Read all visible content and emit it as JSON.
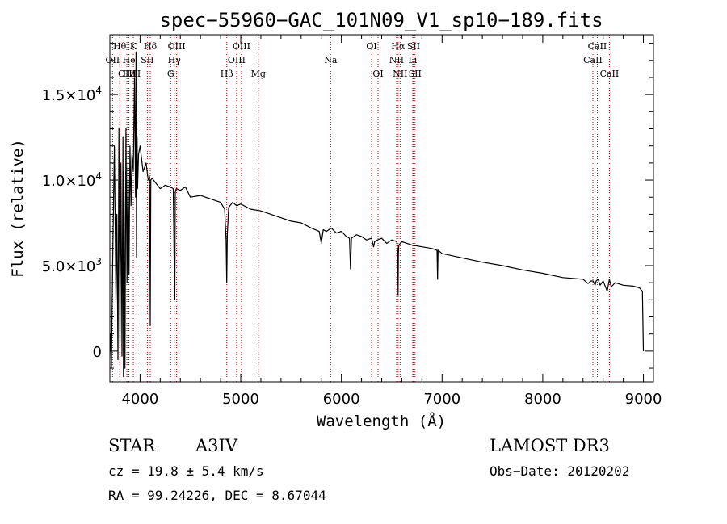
{
  "chart_data": {
    "type": "line",
    "title": "spec−55960−GAC_101N09_V1_sp10−189.fits",
    "xlabel": "Wavelength (Å)",
    "ylabel": "Flux (relative)",
    "xlim": [
      3700,
      9100
    ],
    "ylim": [
      -1800,
      18500
    ],
    "xticks": [
      {
        "value": 4000,
        "label": "4000"
      },
      {
        "value": 5000,
        "label": "5000"
      },
      {
        "value": 6000,
        "label": "6000"
      },
      {
        "value": 7000,
        "label": "7000"
      },
      {
        "value": 8000,
        "label": "8000"
      },
      {
        "value": 9000,
        "label": "9000"
      }
    ],
    "yticks": [
      {
        "value": 0,
        "label": "0"
      },
      {
        "value": 5000,
        "label": "5.0×10",
        "sup": "3"
      },
      {
        "value": 10000,
        "label": "1.0×10",
        "sup": "4"
      },
      {
        "value": 15000,
        "label": "1.5×10",
        "sup": "4"
      }
    ],
    "spectrum": {
      "name": "flux",
      "x": [
        3705,
        3715,
        3730,
        3745,
        3760,
        3770,
        3780,
        3790,
        3800,
        3810,
        3820,
        3830,
        3835,
        3840,
        3850,
        3860,
        3870,
        3880,
        3890,
        3900,
        3910,
        3920,
        3933,
        3945,
        3955,
        3960,
        3965,
        3970,
        3975,
        3985,
        4000,
        4030,
        4060,
        4080,
        4095,
        4101,
        4107,
        4120,
        4160,
        4200,
        4250,
        4300,
        4330,
        4340,
        4345,
        4350,
        4360,
        4400,
        4450,
        4500,
        4600,
        4700,
        4800,
        4840,
        4855,
        4861,
        4867,
        4880,
        4920,
        4960,
        5000,
        5100,
        5200,
        5300,
        5400,
        5500,
        5600,
        5700,
        5780,
        5800,
        5820,
        5850,
        5900,
        5950,
        6000,
        6050,
        6080,
        6090,
        6100,
        6150,
        6200,
        6250,
        6300,
        6320,
        6330,
        6360,
        6400,
        6450,
        6500,
        6550,
        6560,
        6563,
        6566,
        6570,
        6600,
        6650,
        6700,
        6800,
        6900,
        6950,
        6955,
        6960,
        7000,
        7200,
        7400,
        7600,
        7800,
        8000,
        8200,
        8400,
        8450,
        8480,
        8500,
        8520,
        8530,
        8550,
        8570,
        8600,
        8640,
        8662,
        8680,
        8720,
        8800,
        8900,
        8960,
        8990,
        9000
      ],
      "y": [
        1000,
        -1000,
        6000,
        12000,
        3000,
        8000,
        -500,
        13000,
        500,
        11000,
        -300,
        12500,
        -1500,
        10500,
        -1000,
        13000,
        4000,
        11000,
        4500,
        12000,
        8500,
        11500,
        10500,
        16000,
        9000,
        17500,
        5500,
        12500,
        9500,
        11500,
        12000,
        10500,
        11000,
        10000,
        10200,
        1500,
        10000,
        10100,
        9800,
        9500,
        9700,
        9600,
        9500,
        4500,
        3000,
        9300,
        9500,
        9400,
        9600,
        9000,
        9100,
        8900,
        8700,
        8300,
        6500,
        4000,
        6800,
        8400,
        8700,
        8500,
        8600,
        8300,
        8200,
        8000,
        7800,
        7600,
        7500,
        7200,
        7000,
        6300,
        7100,
        7000,
        7200,
        6900,
        7000,
        6700,
        6600,
        4800,
        6600,
        6800,
        6700,
        6500,
        6600,
        6100,
        6400,
        6500,
        6600,
        6300,
        6500,
        6400,
        5800,
        3300,
        5700,
        6200,
        6400,
        6300,
        6200,
        6100,
        6000,
        5900,
        4200,
        5900,
        5700,
        5450,
        5200,
        5000,
        4750,
        4550,
        4300,
        4200,
        3950,
        4100,
        4100,
        3850,
        4100,
        4200,
        3850,
        4100,
        3500,
        4200,
        3750,
        4000,
        3850,
        3800,
        3700,
        3500,
        0
      ]
    },
    "spectral_lines": [
      {
        "label": "Hθ",
        "wavelength": 3798,
        "row": 1
      },
      {
        "label": "OII",
        "wavelength": 3727,
        "row": 2
      },
      {
        "label": "OIII",
        "wavelength": 3869,
        "row": 3
      },
      {
        "label": "Hε",
        "wavelength": 3889,
        "row": 3
      },
      {
        "label": "He",
        "wavelength": 3889,
        "row": 2
      },
      {
        "label": "K",
        "wavelength": 3933,
        "row": 1
      },
      {
        "label": "H",
        "wavelength": 3968,
        "row": 3
      },
      {
        "label": "Hδ",
        "wavelength": 4101,
        "row": 1
      },
      {
        "label": "SII",
        "wavelength": 4072,
        "row": 2
      },
      {
        "label": "OIII",
        "wavelength": 4363,
        "row": 1
      },
      {
        "label": "Hγ",
        "wavelength": 4340,
        "row": 2
      },
      {
        "label": "G",
        "wavelength": 4304,
        "row": 3
      },
      {
        "label": "Hβ",
        "wavelength": 4861,
        "row": 3
      },
      {
        "label": "OIII",
        "wavelength": 4959,
        "row": 2
      },
      {
        "label": "OIII",
        "wavelength": 5007,
        "row": 1
      },
      {
        "label": "Mg",
        "wavelength": 5175,
        "row": 3
      },
      {
        "label": "Na",
        "wavelength": 5893,
        "row": 2
      },
      {
        "label": "OI",
        "wavelength": 6300,
        "row": 1
      },
      {
        "label": "OI",
        "wavelength": 6364,
        "row": 3
      },
      {
        "label": "Hα",
        "wavelength": 6563,
        "row": 1
      },
      {
        "label": "NII",
        "wavelength": 6548,
        "row": 2
      },
      {
        "label": "NII",
        "wavelength": 6583,
        "row": 3
      },
      {
        "label": "SII",
        "wavelength": 6717,
        "row": 1
      },
      {
        "label": "Li",
        "wavelength": 6708,
        "row": 2
      },
      {
        "label": "SII",
        "wavelength": 6731,
        "row": 3
      },
      {
        "label": "CaII",
        "wavelength": 8498,
        "row": 2
      },
      {
        "label": "CaII",
        "wavelength": 8542,
        "row": 1
      },
      {
        "label": "CaII",
        "wavelength": 8662,
        "row": 3
      }
    ]
  },
  "info": {
    "object_class": "STAR",
    "subclass": "A3IV",
    "survey": "LAMOST DR3",
    "redshift": "cz = 19.8 ± 5.4 km/s",
    "obs_date": "Obs−Date: 20120202",
    "coords": "RA =  99.24226, DEC =   8.67044"
  },
  "colors": {
    "line_marker": "#c00000",
    "spectrum": "#000000",
    "axis": "#000000"
  }
}
